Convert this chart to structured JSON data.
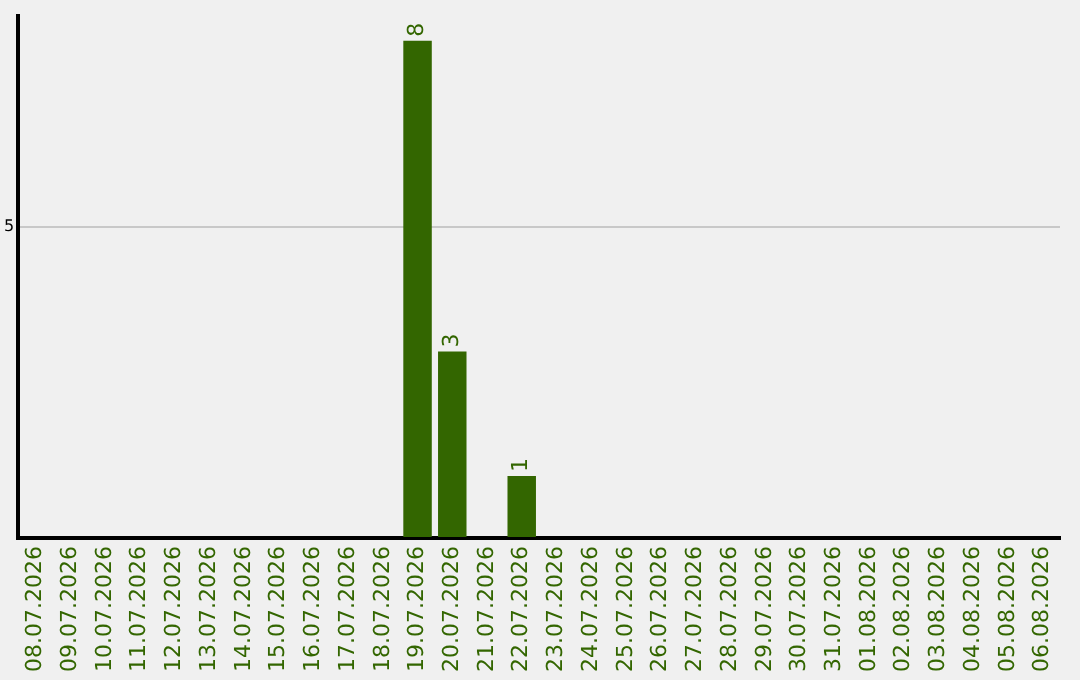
{
  "chart_data": {
    "type": "bar",
    "categories": [
      "08.07.2026",
      "09.07.2026",
      "10.07.2026",
      "11.07.2026",
      "12.07.2026",
      "13.07.2026",
      "14.07.2026",
      "15.07.2026",
      "16.07.2026",
      "17.07.2026",
      "18.07.2026",
      "19.07.2026",
      "20.07.2026",
      "21.07.2026",
      "22.07.2026",
      "23.07.2026",
      "24.07.2026",
      "25.07.2026",
      "26.07.2026",
      "27.07.2026",
      "28.07.2026",
      "29.07.2026",
      "30.07.2026",
      "31.07.2026",
      "01.08.2026",
      "02.08.2026",
      "03.08.2026",
      "04.08.2026",
      "05.08.2026",
      "06.08.2026"
    ],
    "values": [
      0,
      0,
      0,
      0,
      0,
      0,
      0,
      0,
      0,
      0,
      0,
      8,
      3,
      0,
      1,
      0,
      0,
      0,
      0,
      0,
      0,
      0,
      0,
      0,
      0,
      0,
      0,
      0,
      0,
      0
    ],
    "value_labels": [
      null,
      null,
      null,
      null,
      null,
      null,
      null,
      null,
      null,
      null,
      null,
      "8",
      "3",
      null,
      "1",
      null,
      null,
      null,
      null,
      null,
      null,
      null,
      null,
      null,
      null,
      null,
      null,
      null,
      null,
      null
    ],
    "color": "#336600",
    "ylim": [
      0,
      8.4
    ],
    "yticks": [
      {
        "value": 0,
        "label": null
      },
      5
    ],
    "grid": "y"
  }
}
